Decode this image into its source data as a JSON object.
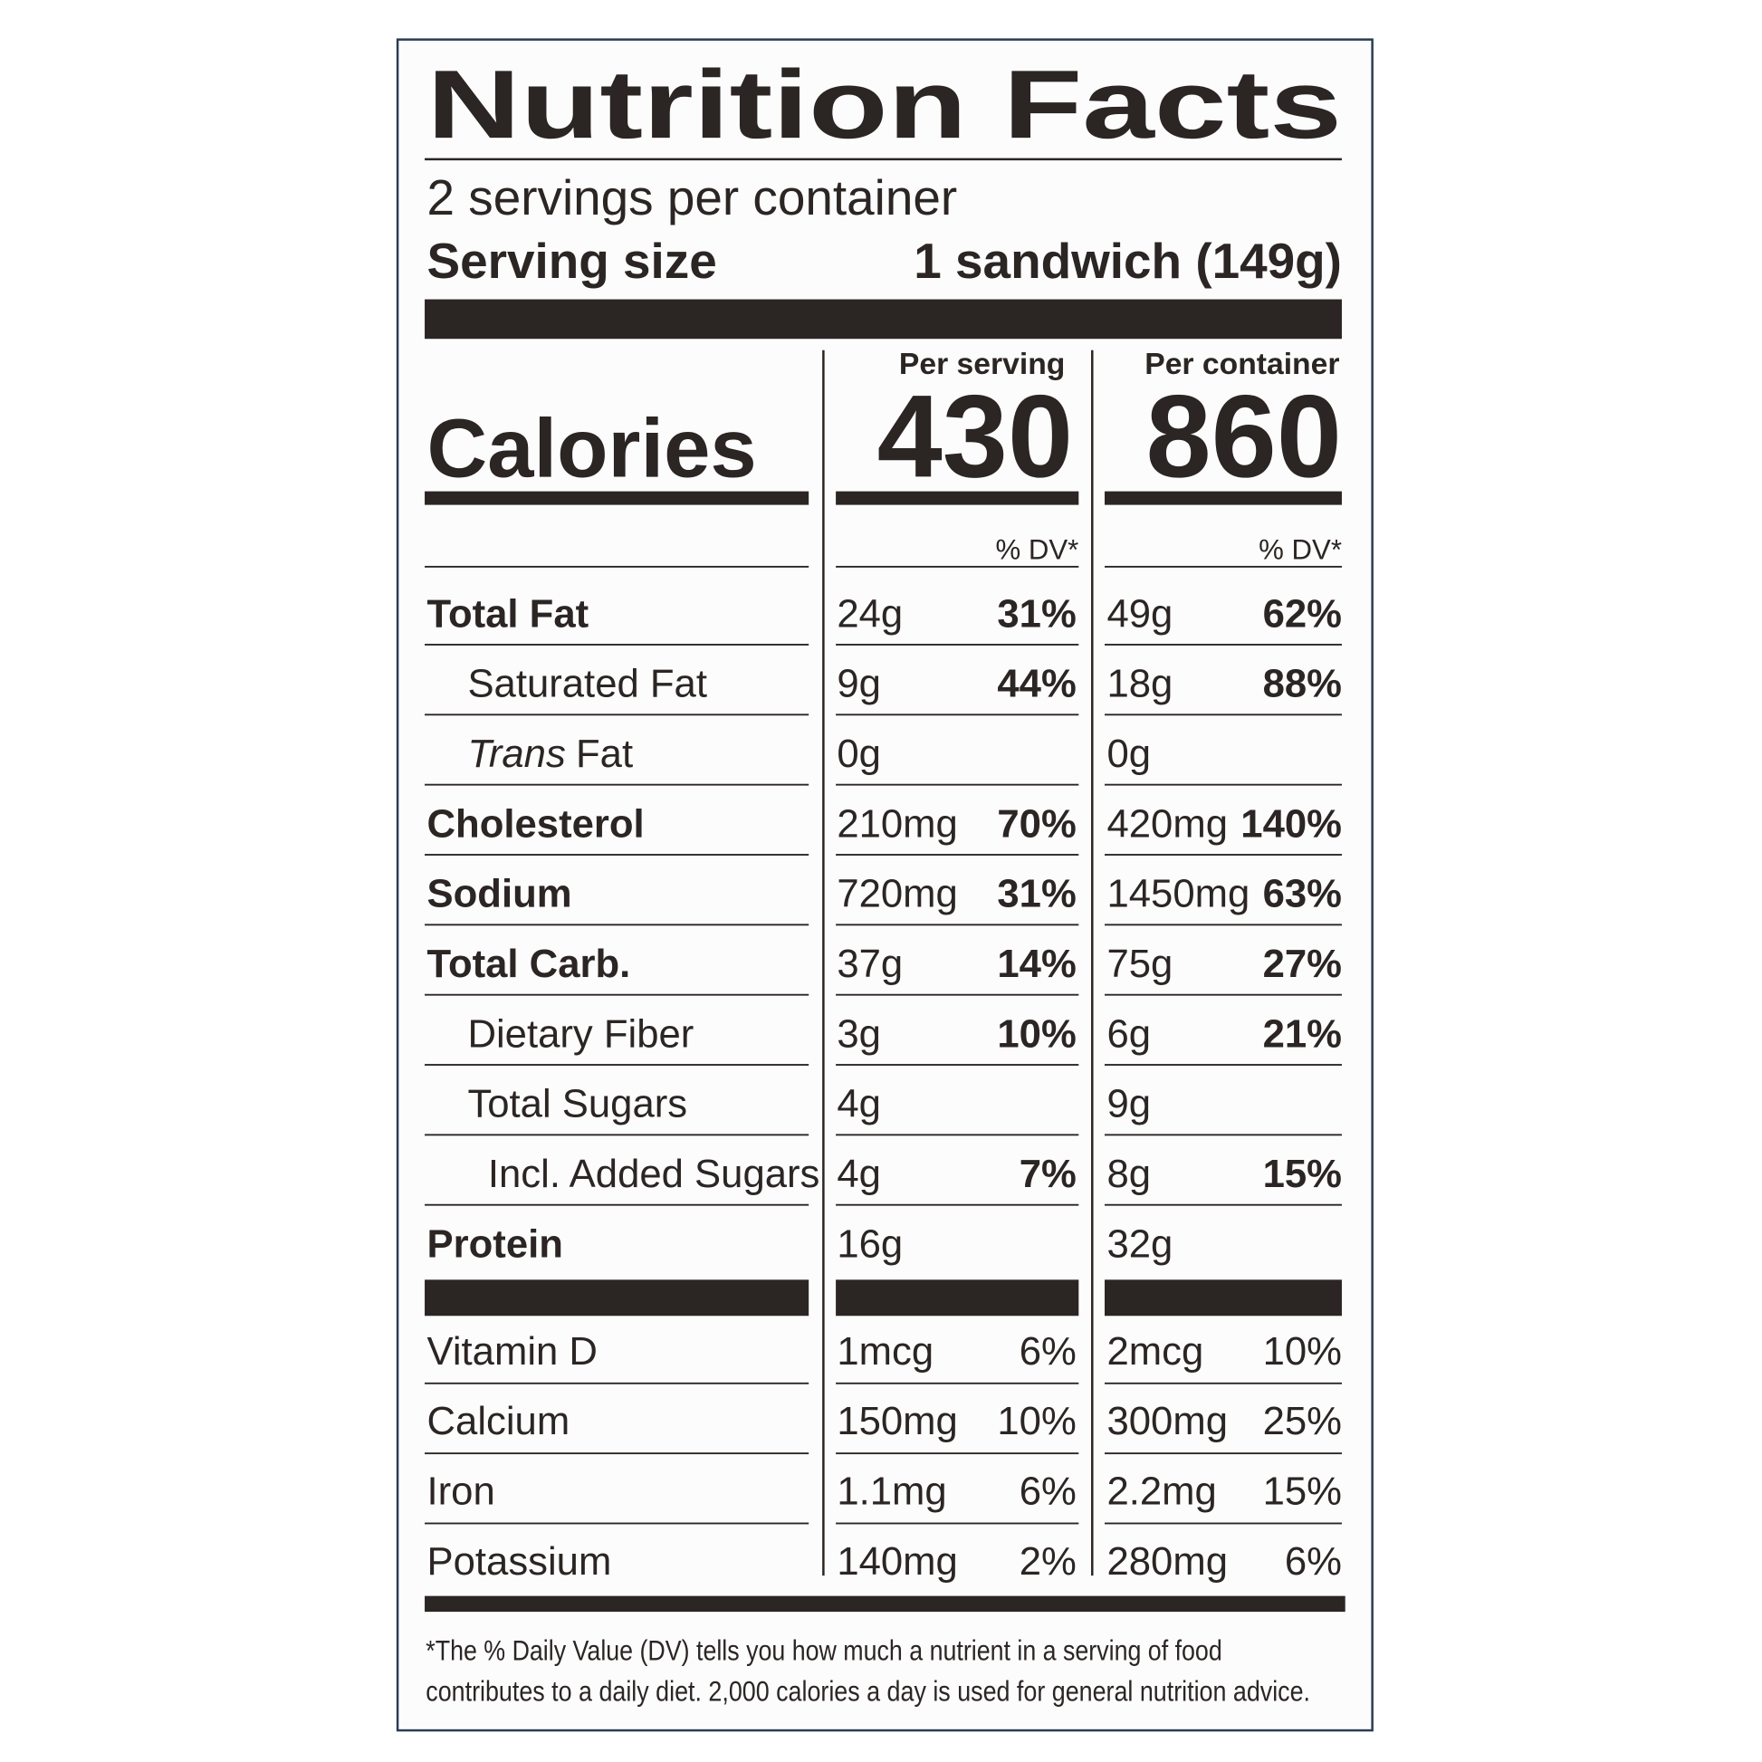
{
  "title": "Nutrition Facts",
  "servings": "2 servings per container",
  "serving_size": {
    "label": "Serving size",
    "value": "1 sandwich (149g)"
  },
  "columns": [
    "Per serving",
    "Per container"
  ],
  "calories": {
    "label": "Calories",
    "values": [
      "430",
      "860"
    ]
  },
  "dv_header": [
    "% DV*",
    "% DV*"
  ],
  "nutrients": [
    {
      "name": "Total Fat",
      "level": 0,
      "serving": [
        "24g",
        "31%"
      ],
      "container": [
        "49g",
        "62%"
      ]
    },
    {
      "name": "Saturated Fat",
      "level": 1,
      "serving": [
        "9g",
        "44%"
      ],
      "container": [
        "18g",
        "88%"
      ]
    },
    {
      "name_italic": "Trans",
      "name": "Fat",
      "level": 1,
      "serving": [
        "0g",
        null
      ],
      "container": [
        "0g",
        null
      ]
    },
    {
      "name": "Cholesterol",
      "level": 0,
      "serving": [
        "210mg",
        "70%"
      ],
      "container": [
        "420mg",
        "140%"
      ]
    },
    {
      "name": "Sodium",
      "level": 0,
      "serving": [
        "720mg",
        "31%"
      ],
      "container": [
        "1450mg",
        "63%"
      ]
    },
    {
      "name": "Total Carb.",
      "level": 0,
      "serving": [
        "37g",
        "14%"
      ],
      "container": [
        "75g",
        "27%"
      ]
    },
    {
      "name": "Dietary Fiber",
      "level": 1,
      "serving": [
        "3g",
        "10%"
      ],
      "container": [
        "6g",
        "21%"
      ]
    },
    {
      "name": "Total Sugars",
      "level": 1,
      "serving": [
        "4g",
        null
      ],
      "container": [
        "9g",
        null
      ]
    },
    {
      "name": "Incl. Added Sugars",
      "level": 2,
      "serving": [
        "4g",
        "7%"
      ],
      "container": [
        "8g",
        "15%"
      ]
    },
    {
      "name": "Protein",
      "level": 0,
      "serving": [
        "16g",
        null
      ],
      "container": [
        "32g",
        null
      ]
    }
  ],
  "vitamins": [
    {
      "name": "Vitamin D",
      "serving": [
        "1mcg",
        "6%"
      ],
      "container": [
        "2mcg",
        "10%"
      ]
    },
    {
      "name": "Calcium",
      "serving": [
        "150mg",
        "10%"
      ],
      "container": [
        "300mg",
        "25%"
      ]
    },
    {
      "name": "Iron",
      "serving": [
        "1.1mg",
        "6%"
      ],
      "container": [
        "2.2mg",
        "15%"
      ]
    },
    {
      "name": "Potassium",
      "serving": [
        "140mg",
        "2%"
      ],
      "container": [
        "280mg",
        "6%"
      ]
    }
  ],
  "footnote": [
    "*The % Daily Value (DV) tells you how much a nutrient in a serving of food",
    "contributes to a daily diet. 2,000 calories a day is used for general nutrition advice."
  ]
}
